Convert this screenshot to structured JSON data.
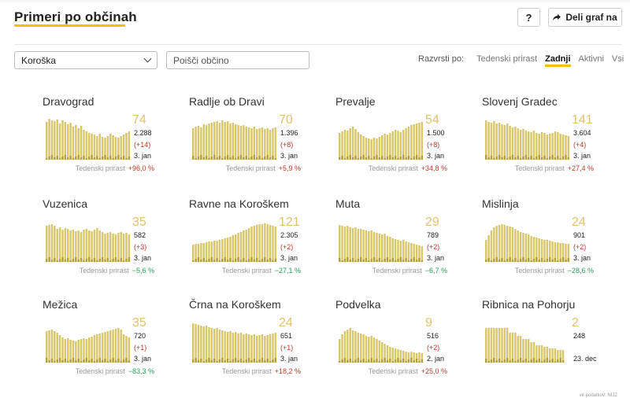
{
  "header": {
    "title": "Primeri po občinah",
    "help_label": "?",
    "share_label": "Deli graf na"
  },
  "filters": {
    "region_value": "Koroška",
    "search_placeholder": "Poišči občino",
    "sort_label": "Razvrsti po:",
    "sort_options": [
      "Tedenski prirast",
      "Zadnji",
      "Aktivni",
      "Vsi"
    ],
    "sort_active": "Zadnji"
  },
  "colors": {
    "accent": "#f2c200",
    "bar": "#d9c76a",
    "bar_dark": "#b5a038",
    "up": "#c0392b",
    "down": "#27a060"
  },
  "weekly_label": "Tedenski prirast",
  "cards": [
    {
      "name": "Dravograd",
      "active": "74",
      "total": "2.288",
      "delta": "(+14)",
      "date": "3. jan",
      "weekly": "+96,0 %",
      "trend": "up",
      "bars": [
        48,
        52,
        50,
        49,
        51,
        46,
        50,
        48,
        45,
        47,
        42,
        44,
        40,
        43,
        38,
        36,
        34,
        33,
        32,
        30,
        33,
        29,
        28,
        30,
        33,
        31,
        29,
        28,
        30,
        32,
        34,
        36
      ]
    },
    {
      "name": "Radlje ob Dravi",
      "active": "70",
      "total": "1.396",
      "delta": "(+8)",
      "date": "3. jan",
      "weekly": "+5,9 %",
      "trend": "up",
      "bars": [
        40,
        42,
        43,
        41,
        45,
        44,
        46,
        47,
        48,
        49,
        47,
        50,
        48,
        49,
        46,
        47,
        45,
        44,
        43,
        44,
        42,
        41,
        40,
        42,
        39,
        40,
        41,
        39,
        40,
        38,
        40,
        41
      ]
    },
    {
      "name": "Prevalje",
      "active": "54",
      "total": "1.500",
      "delta": "(+8)",
      "date": "3. jan",
      "weekly": "+34,8 %",
      "trend": "up",
      "bars": [
        34,
        36,
        38,
        37,
        40,
        42,
        39,
        35,
        32,
        30,
        28,
        27,
        26,
        28,
        27,
        29,
        31,
        33,
        32,
        34,
        36,
        38,
        37,
        35,
        38,
        40,
        42,
        44,
        45,
        46,
        47,
        48
      ]
    },
    {
      "name": "Slovenj Gradec",
      "active": "141",
      "total": "3.604",
      "delta": "(+4)",
      "date": "3. jan",
      "weekly": "+27,4 %",
      "trend": "up",
      "bars": [
        50,
        48,
        47,
        49,
        46,
        47,
        45,
        44,
        46,
        43,
        41,
        42,
        40,
        38,
        39,
        37,
        36,
        35,
        37,
        34,
        33,
        35,
        34,
        32,
        33,
        34,
        36,
        35,
        33,
        32,
        31,
        30
      ]
    },
    {
      "name": "Vuzenica",
      "active": "35",
      "total": "582",
      "delta": "(+3)",
      "date": "3. jan",
      "weekly": "−5,6 %",
      "trend": "down",
      "bars": [
        46,
        47,
        48,
        46,
        42,
        44,
        41,
        43,
        42,
        40,
        41,
        39,
        40,
        38,
        41,
        42,
        40,
        39,
        41,
        43,
        40,
        38,
        36,
        37,
        38,
        36,
        35,
        37,
        38,
        36,
        37,
        35
      ]
    },
    {
      "name": "Ravne na Koroškem",
      "active": "121",
      "total": "2.305",
      "delta": "(+2)",
      "date": "3. jan",
      "weekly": "−27,1 %",
      "trend": "down",
      "bars": [
        22,
        23,
        23,
        24,
        24,
        25,
        26,
        26,
        27,
        27,
        28,
        29,
        30,
        31,
        32,
        34,
        35,
        37,
        38,
        40,
        41,
        43,
        45,
        46,
        47,
        48,
        48,
        49,
        48,
        47,
        46,
        45
      ]
    },
    {
      "name": "Muta",
      "active": "29",
      "total": "789",
      "delta": "(+2)",
      "date": "3. jan",
      "weekly": "−6,7 %",
      "trend": "down",
      "bars": [
        47,
        46,
        45,
        46,
        44,
        43,
        44,
        42,
        42,
        41,
        40,
        39,
        40,
        38,
        37,
        36,
        35,
        36,
        33,
        32,
        30,
        29,
        28,
        27,
        28,
        26,
        25,
        24,
        23,
        22,
        21,
        20
      ]
    },
    {
      "name": "Mislinja",
      "active": "24",
      "total": "901",
      "delta": "(+2)",
      "date": "3. jan",
      "weekly": "−28,6 %",
      "trend": "down",
      "bars": [
        28,
        34,
        40,
        44,
        46,
        47,
        48,
        47,
        46,
        45,
        44,
        42,
        40,
        38,
        37,
        36,
        35,
        33,
        32,
        31,
        30,
        29,
        28,
        28,
        27,
        26,
        25,
        25,
        24,
        24,
        23,
        23
      ]
    },
    {
      "name": "Mežica",
      "active": "35",
      "total": "720",
      "delta": "(+1)",
      "date": "3. jan",
      "weekly": "−83,3 %",
      "trend": "down",
      "bars": [
        40,
        41,
        42,
        40,
        38,
        35,
        32,
        30,
        31,
        29,
        28,
        27,
        29,
        30,
        31,
        30,
        32,
        33,
        35,
        36,
        37,
        38,
        39,
        40,
        41,
        42,
        43,
        44,
        42,
        36,
        34,
        32
      ]
    },
    {
      "name": "Črna na Koroškem",
      "active": "24",
      "total": "651",
      "delta": "(+1)",
      "date": "3. jan",
      "weekly": "+18,2 %",
      "trend": "up",
      "bars": [
        50,
        49,
        48,
        47,
        46,
        47,
        45,
        44,
        43,
        44,
        42,
        41,
        40,
        39,
        40,
        38,
        39,
        37,
        38,
        36,
        37,
        36,
        35,
        36,
        34,
        35,
        36,
        34,
        35,
        36,
        37,
        38
      ]
    },
    {
      "name": "Podvelka",
      "active": "9",
      "total": "516",
      "delta": "(+2)",
      "date": "2. jan",
      "weekly": "+25,0 %",
      "trend": "up",
      "bars": [
        30,
        36,
        40,
        42,
        44,
        41,
        40,
        38,
        37,
        36,
        34,
        33,
        34,
        32,
        30,
        28,
        26,
        24,
        22,
        20,
        19,
        18,
        17,
        16,
        15,
        14,
        13,
        14,
        13,
        12,
        13,
        12
      ]
    },
    {
      "name": "Ribnica na Pohorju",
      "active": "2",
      "total": "248",
      "delta": "",
      "date": "23. dec",
      "weekly": "",
      "trend": "none",
      "bars": [
        44,
        44,
        44,
        44,
        44,
        44,
        44,
        44,
        44,
        38,
        38,
        38,
        34,
        34,
        30,
        30,
        30,
        26,
        26,
        22,
        22,
        22,
        20,
        20,
        18,
        18,
        18,
        16,
        16,
        16
      ]
    }
  ],
  "source": "vir podatkov: NIJZ"
}
